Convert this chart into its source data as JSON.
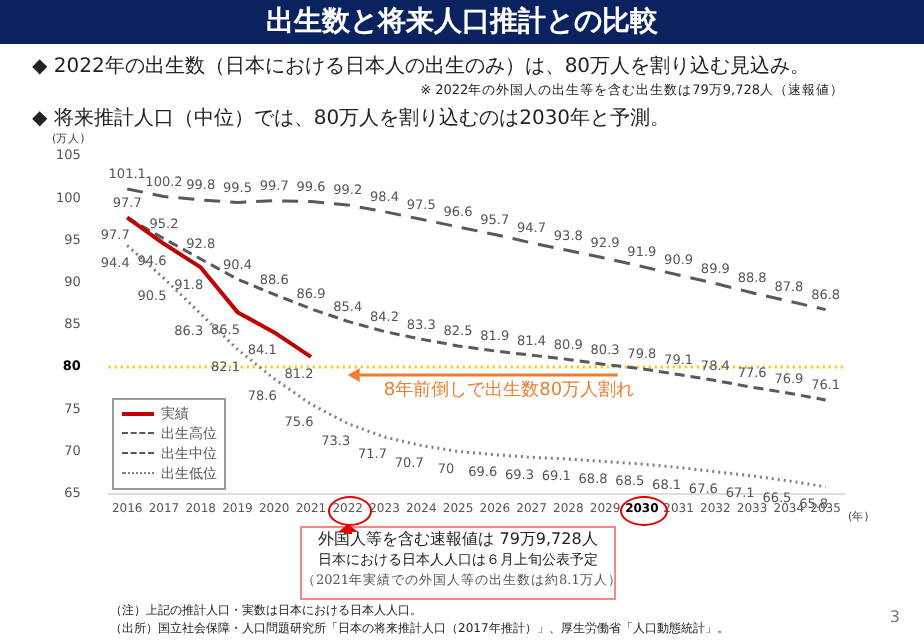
{
  "chart_data": {
    "type": "line",
    "title": "出生数と将来人口推計との比較",
    "ylabel": "(万人)",
    "xlabel": "(年)",
    "categories": [
      "2016",
      "2017",
      "2018",
      "2019",
      "2020",
      "2021",
      "2022",
      "2023",
      "2024",
      "2025",
      "2026",
      "2027",
      "2028",
      "2029",
      "2030",
      "2031",
      "2032",
      "2033",
      "2034",
      "2035"
    ],
    "series": [
      {
        "name": "実績",
        "color": "#c00000",
        "line_style": "solid",
        "values": [
          97.7,
          94.6,
          91.8,
          86.5,
          84.1,
          81.2,
          null,
          null,
          null,
          null,
          null,
          null,
          null,
          null,
          null,
          null,
          null,
          null,
          null,
          null
        ]
      },
      {
        "name": "出生高位",
        "color": "#595959",
        "line_style": "dashed",
        "values": [
          101.1,
          100.2,
          99.8,
          99.5,
          99.7,
          99.6,
          99.2,
          98.4,
          97.5,
          96.6,
          95.7,
          94.7,
          93.8,
          92.9,
          91.9,
          90.9,
          89.9,
          88.8,
          87.8,
          86.8
        ]
      },
      {
        "name": "出生中位",
        "color": "#595959",
        "line_style": "dashed",
        "values": [
          97.7,
          95.2,
          92.8,
          90.4,
          88.6,
          86.9,
          85.4,
          84.2,
          83.3,
          82.5,
          81.9,
          81.4,
          80.9,
          80.3,
          79.8,
          79.1,
          78.4,
          77.6,
          76.9,
          76.1
        ]
      },
      {
        "name": "出生低位",
        "color": "#7f7f7f",
        "line_style": "dotted",
        "values": [
          94.4,
          90.5,
          86.3,
          82.1,
          78.6,
          75.6,
          73.3,
          71.7,
          70.7,
          70,
          69.6,
          69.3,
          69.1,
          68.8,
          68.5,
          68.1,
          67.6,
          67.1,
          66.5,
          65.8
        ]
      }
    ],
    "ylim": [
      65,
      105
    ],
    "yticks": [
      65,
      70,
      75,
      80,
      85,
      90,
      95,
      100,
      105
    ],
    "ref_lines": [
      {
        "axis": "y",
        "value": 80,
        "color": "#ffc000",
        "line_style": "dotted"
      }
    ],
    "data_labels": true,
    "legend": "bottom left",
    "grid": false,
    "marker": "none",
    "annotations": [
      "◆ 2022年の出生数（日本における日本人の出生のみ）は、80万人を割り込む見込み。",
      "※ 2022年の外国人の出生等を含む出生数は79万9,728人（速報値）",
      "◆ 将来推計人口（中位）では、80万人を割り込むのは2030年と予測。",
      {
        "text": "8年前倒しで出生数80万人割れ",
        "x": "2022",
        "y": 80
      },
      "外国人等を含む速報値は 79万9,728人",
      "日本における日本人人口は６月上旬公表予定",
      "（2021年実績での外国人等の出生数は約8.1万人）",
      "（注）上記の推計人口・実数は日本における日本人人口。",
      "（出所）国立社会保障・人口問題研究所「日本の将来推計人口（2017年推計）」、厚生労働省「人口動態統計」。",
      "3"
    ]
  }
}
